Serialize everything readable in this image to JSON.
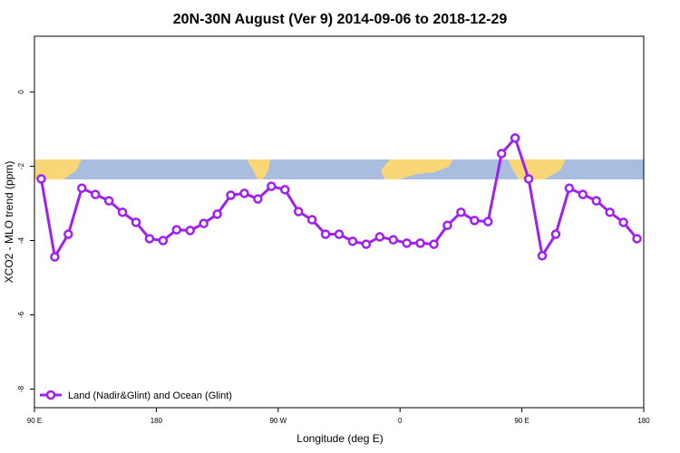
{
  "chart_data": {
    "type": "line",
    "title": "20N-30N August (Ver 9)   2014-09-06 to 2018-12-29",
    "x_label": "Longitude (deg E)",
    "y_label": "XCO2 - MLO trend (ppm)",
    "xlim": [
      90,
      540
    ],
    "ylim": [
      -8.5,
      1.5
    ],
    "xticks": [
      {
        "value": 90,
        "label": "90 E"
      },
      180,
      {
        "value": 270,
        "label": "90 W"
      },
      {
        "value": 360,
        "label": "0"
      },
      {
        "value": 450,
        "label": "90 E"
      },
      {
        "value": 540,
        "label": "180"
      }
    ],
    "yticks": [
      -8,
      -6,
      -4,
      -2,
      0
    ],
    "legend": "bottom-left",
    "x": [
      95,
      105,
      115,
      125,
      135,
      145,
      155,
      165,
      175,
      185,
      195,
      205,
      215,
      225,
      235,
      245,
      255,
      265,
      275,
      285,
      295,
      305,
      315,
      325,
      335,
      345,
      355,
      365,
      375,
      385,
      395,
      405,
      415,
      425,
      435,
      445,
      455,
      465,
      475,
      485,
      495,
      505,
      515,
      525,
      535
    ],
    "series": [
      {
        "name": "Land (Nadir&Glint) and Ocean (Glint)",
        "color": "#a020f0",
        "values": [
          -2.34,
          -4.44,
          -3.83,
          -2.59,
          -2.76,
          -2.93,
          -3.24,
          -3.51,
          -3.95,
          -4.0,
          -3.71,
          -3.73,
          -3.54,
          -3.29,
          -2.78,
          -2.73,
          -2.88,
          -2.54,
          -2.63,
          -3.22,
          -3.44,
          -3.83,
          -3.83,
          -4.02,
          -4.1,
          -3.9,
          -3.98,
          -4.07,
          -4.07,
          -4.1,
          -3.59,
          -3.24,
          -3.46,
          -3.49,
          -1.66,
          -1.24,
          -2.34,
          -4.41,
          -3.83,
          -2.59,
          -2.76,
          -2.93,
          -3.24,
          -3.51,
          -3.95
        ]
      }
    ]
  }
}
